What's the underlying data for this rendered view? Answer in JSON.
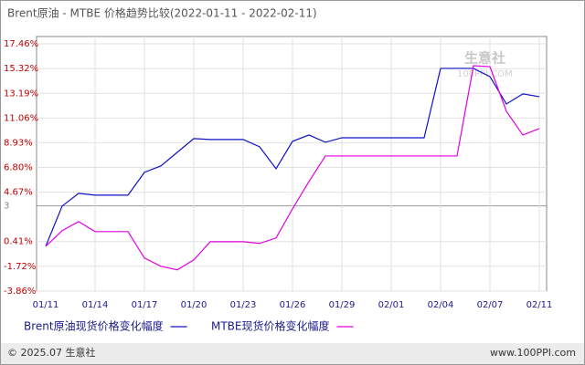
{
  "chart_data": {
    "type": "line",
    "title": "Brent原油 - MTBE 价格趋势比较(2022-01-11 - 2022-02-11)",
    "categories": [
      "01/11",
      null,
      null,
      "01/14",
      null,
      null,
      "01/17",
      null,
      null,
      "01/20",
      null,
      null,
      "01/23",
      null,
      null,
      "01/26",
      null,
      null,
      "01/29",
      null,
      null,
      "02/01",
      null,
      null,
      "02/04",
      null,
      null,
      "02/07",
      null,
      null,
      "02/11"
    ],
    "series": [
      {
        "name": "Brent原油现货价格变化幅度",
        "color": "#1010c8",
        "values": [
          0,
          3.47,
          4.57,
          4.41,
          4.41,
          4.41,
          6.38,
          6.93,
          8.11,
          9.29,
          9.21,
          9.21,
          9.21,
          8.58,
          6.69,
          9.05,
          9.6,
          8.97,
          9.36,
          9.36,
          9.36,
          9.36,
          9.36,
          9.36,
          15.34,
          15.34,
          15.34,
          14.63,
          12.27,
          13.14,
          12.9
        ]
      },
      {
        "name": "MTBE现货价格变化幅度",
        "color": "#e000e0",
        "values": [
          0,
          1.35,
          2.13,
          1.27,
          1.27,
          1.27,
          -1.01,
          -1.72,
          -2.03,
          -1.17,
          0.4,
          0.4,
          0.4,
          0.25,
          0.72,
          3.23,
          5.59,
          7.79,
          7.79,
          7.79,
          7.79,
          7.79,
          7.79,
          7.79,
          7.79,
          7.79,
          15.57,
          15.49,
          11.64,
          9.6,
          10.15
        ]
      }
    ],
    "ylim": [
      -3.86,
      18.09
    ],
    "yticks": [
      {
        "value": 17.46,
        "label": "17.46%"
      },
      {
        "value": 15.32,
        "label": "15.32%"
      },
      {
        "value": 13.19,
        "label": "13.19%"
      },
      {
        "value": 11.06,
        "label": "11.06%"
      },
      {
        "value": 8.93,
        "label": "8.93%"
      },
      {
        "value": 6.8,
        "label": "6.80%"
      },
      {
        "value": 4.67,
        "label": "4.67%"
      },
      {
        "value": 0.41,
        "label": "0.41%"
      },
      {
        "value": -1.72,
        "label": "-1.72%"
      },
      {
        "value": -3.86,
        "label": "-3.86%"
      }
    ],
    "reference_line": {
      "value": 3.49,
      "label": "3"
    },
    "grid": true,
    "legend": "bottom-left",
    "watermark": [
      "生意社",
      "100PPI.COM"
    ],
    "footer": [
      "© 2025.07 生意社",
      "www.100PPI.com"
    ]
  }
}
